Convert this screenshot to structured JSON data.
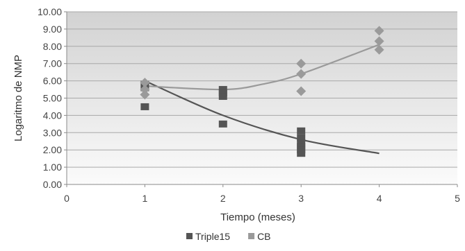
{
  "chart_data": {
    "type": "scatter",
    "xlabel": "Tiempo (meses)",
    "ylabel": "Logaritmo de NMP",
    "xlim": [
      0,
      5
    ],
    "ylim": [
      0,
      10
    ],
    "x_ticks": [
      "0",
      "1",
      "2",
      "3",
      "4",
      "5"
    ],
    "y_ticks": [
      "0.00",
      "1.00",
      "2.00",
      "3.00",
      "4.00",
      "5.00",
      "6.00",
      "7.00",
      "8.00",
      "9.00",
      "10.00"
    ],
    "grid": true,
    "legend_position": "bottom",
    "series": [
      {
        "name": "Triple15",
        "color": "#555555",
        "marker": "square",
        "points": [
          [
            1,
            5.8
          ],
          [
            1,
            5.6
          ],
          [
            1,
            4.5
          ],
          [
            2,
            5.5
          ],
          [
            2,
            5.3
          ],
          [
            2,
            5.1
          ],
          [
            2,
            3.5
          ],
          [
            3,
            3.1
          ],
          [
            3,
            2.7
          ],
          [
            3,
            2.4
          ],
          [
            3,
            2.2
          ],
          [
            3,
            2.0
          ],
          [
            3,
            1.8
          ]
        ],
        "trendline": [
          [
            1,
            6.0
          ],
          [
            2,
            4.0
          ],
          [
            3,
            2.6
          ],
          [
            4,
            1.8
          ]
        ]
      },
      {
        "name": "CB",
        "color": "#9a9a9a",
        "marker": "diamond",
        "points": [
          [
            1,
            5.9
          ],
          [
            1,
            5.5
          ],
          [
            1,
            5.2
          ],
          [
            3,
            7.0
          ],
          [
            3,
            6.4
          ],
          [
            3,
            5.4
          ],
          [
            4,
            8.9
          ],
          [
            4,
            8.3
          ],
          [
            4,
            7.8
          ]
        ],
        "trendline": [
          [
            1,
            5.7
          ],
          [
            2,
            5.5
          ],
          [
            2.5,
            5.8
          ],
          [
            3,
            6.4
          ],
          [
            4,
            8.1
          ]
        ]
      }
    ]
  }
}
